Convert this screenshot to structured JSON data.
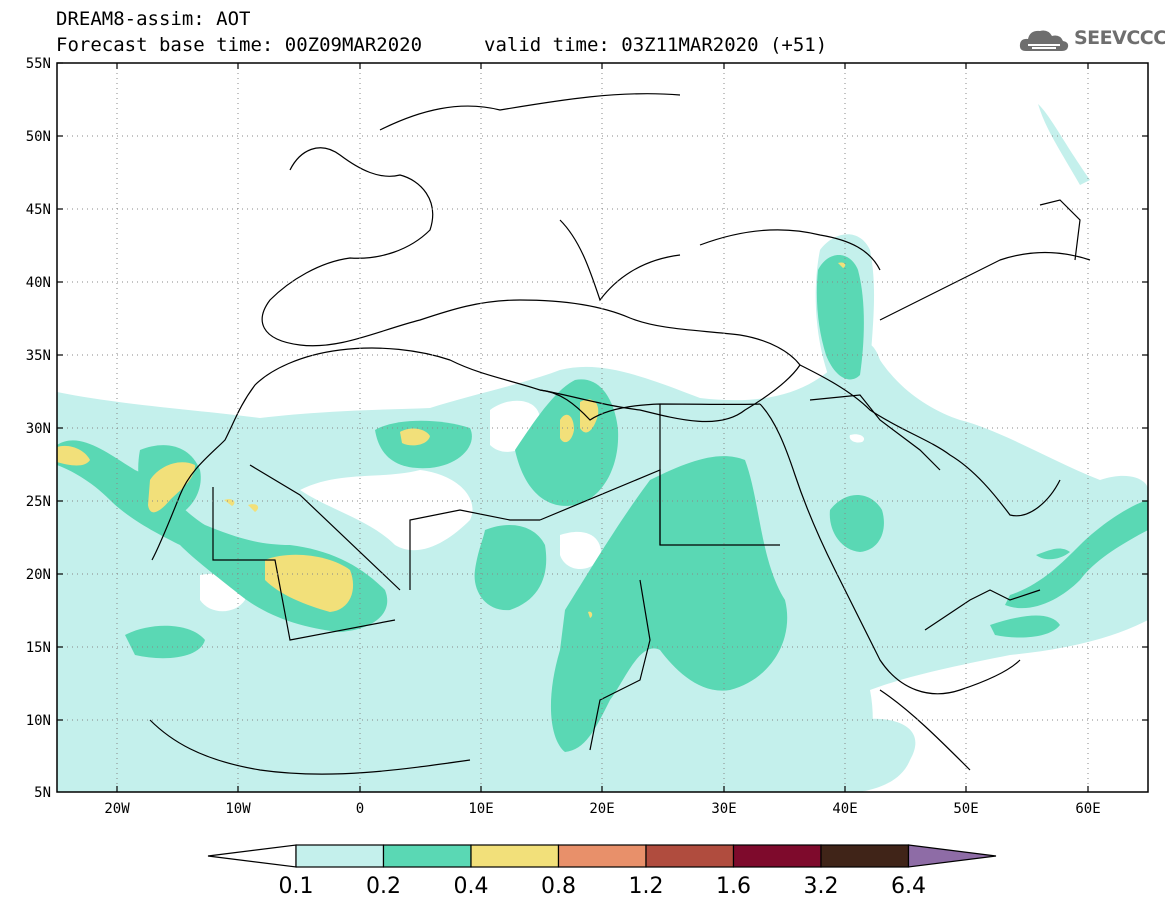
{
  "title_line1": "DREAM8-assim: AOT",
  "title_line2": "Forecast base time: 00Z09MAR2020",
  "valid_time": "valid time: 03Z11MAR2020 (+51)",
  "logo_text": "SEEVCCC",
  "map": {
    "lon_range": [
      -25,
      65
    ],
    "lat_range": [
      5,
      55
    ],
    "lat_ticks": [
      "55N",
      "50N",
      "45N",
      "40N",
      "35N",
      "30N",
      "25N",
      "20N",
      "15N",
      "10N",
      "5N"
    ],
    "lon_ticks": [
      "20W",
      "10W",
      "0",
      "10E",
      "20E",
      "30E",
      "40E",
      "50E",
      "60E"
    ],
    "grid": "dotted"
  },
  "colorbar": {
    "labels": [
      "0.1",
      "0.2",
      "0.4",
      "0.8",
      "1.2",
      "1.6",
      "3.2",
      "6.4"
    ],
    "colors": [
      "#ffffff",
      "#c4f0ec",
      "#5ad8b4",
      "#f2e07a",
      "#e8906a",
      "#b04c3e",
      "#7e0a2c",
      "#402418",
      "#8e6ca6"
    ]
  }
}
